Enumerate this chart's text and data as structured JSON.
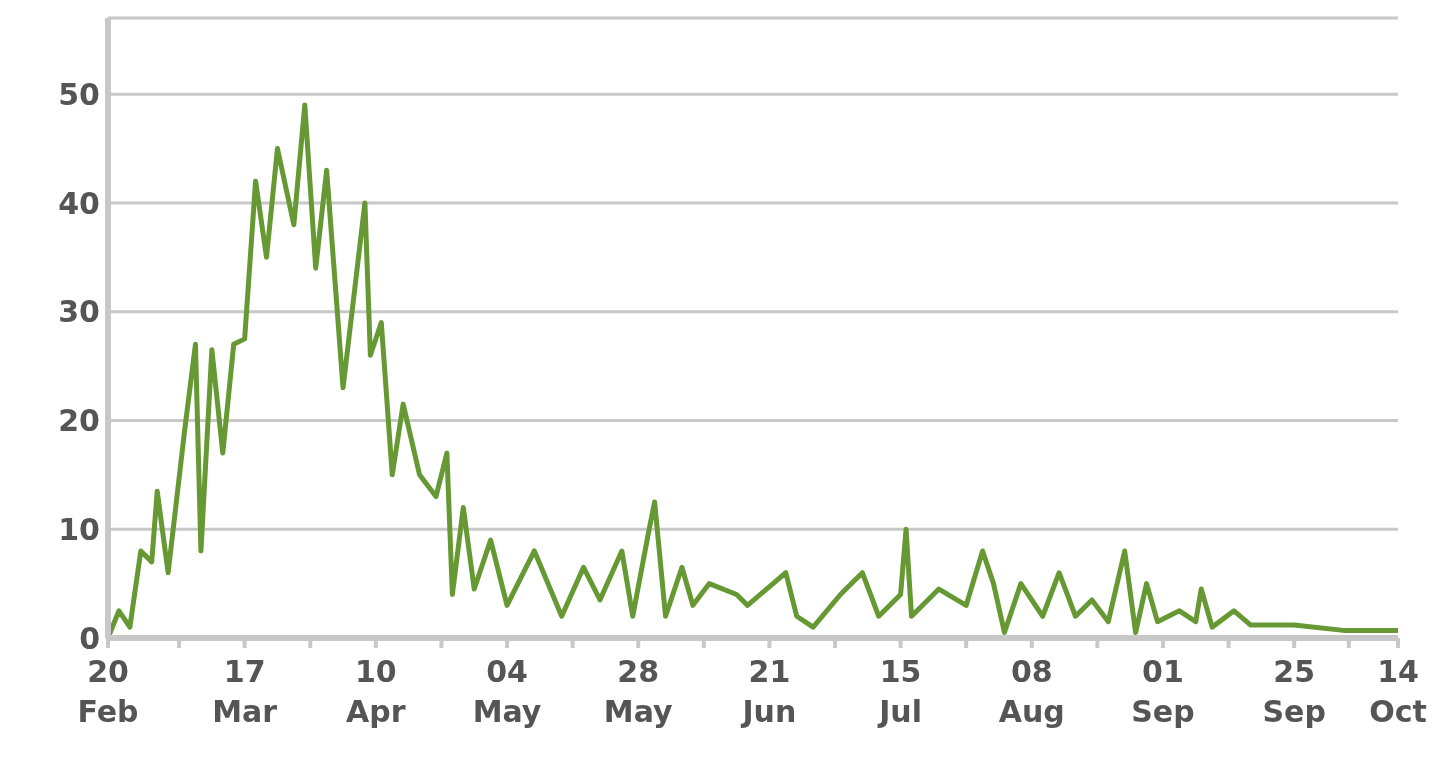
{
  "chart_data": {
    "type": "line",
    "x": [
      "--02-20",
      "--02-22",
      "--02-24",
      "--02-26",
      "--02-28",
      "--03-01",
      "--03-03",
      "--03-06",
      "--03-08",
      "--03-09",
      "--03-11",
      "--03-13",
      "--03-15",
      "--03-17",
      "--03-19",
      "--03-21",
      "--03-23",
      "--03-26",
      "--03-28",
      "--03-30",
      "--04-01",
      "--04-04",
      "--04-08",
      "--04-09",
      "--04-11",
      "--04-13",
      "--04-15",
      "--04-18",
      "--04-21",
      "--04-23",
      "--04-24",
      "--04-26",
      "--04-28",
      "--05-01",
      "--05-04",
      "--05-09",
      "--05-14",
      "--05-18",
      "--05-21",
      "--05-25",
      "--05-27",
      "--05-30",
      "--05-31",
      "--06-02",
      "--06-05",
      "--06-07",
      "--06-10",
      "--06-15",
      "--06-17",
      "--06-24",
      "--06-26",
      "--06-29",
      "--07-04",
      "--07-08",
      "--07-11",
      "--07-15",
      "--07-16",
      "--07-17",
      "--07-22",
      "--07-27",
      "--07-30",
      "--08-01",
      "--08-03",
      "--08-06",
      "--08-10",
      "--08-13",
      "--08-16",
      "--08-19",
      "--08-22",
      "--08-25",
      "--08-27",
      "--08-29",
      "--08-31",
      "--09-04",
      "--09-07",
      "--09-08",
      "--09-10",
      "--09-14",
      "--09-17",
      "--09-25",
      "--10-04",
      "--10-14"
    ],
    "series": [
      {
        "color": "#669933",
        "values": [
          0,
          2.5,
          1,
          8,
          7,
          13.5,
          6,
          19,
          27,
          8,
          26.5,
          17,
          27,
          27.5,
          42,
          35,
          45,
          38,
          49,
          34,
          43,
          23,
          40,
          26,
          29,
          15,
          21.5,
          15,
          13,
          17,
          4,
          12,
          4.5,
          9,
          3,
          8,
          2,
          6.5,
          3.5,
          8,
          2,
          10,
          12.5,
          2,
          6.5,
          3,
          5,
          4,
          3,
          6,
          2,
          1,
          4,
          6,
          2,
          4,
          10,
          2,
          4.5,
          3,
          8,
          5,
          0.5,
          5,
          2,
          6,
          2,
          3.5,
          1.5,
          8,
          0.5,
          5,
          1.5,
          2.5,
          1.5,
          4.5,
          1,
          2.5,
          1.2,
          1.2,
          0.7,
          0.7
        ]
      }
    ],
    "xlim": [
      "--02-20",
      "--10-14"
    ],
    "xticks": [
      {
        "value": "--02-20",
        "label": "20 Feb"
      },
      {
        "value": "--03-05",
        "label": null
      },
      {
        "value": "--03-17",
        "label": "17 Mar"
      },
      {
        "value": "--03-29",
        "label": null
      },
      {
        "value": "--04-10",
        "label": "10 Apr"
      },
      {
        "value": "--04-22",
        "label": null
      },
      {
        "value": "--05-04",
        "label": "04 May"
      },
      {
        "value": "--05-16",
        "label": null
      },
      {
        "value": "--05-28",
        "label": "28 May"
      },
      {
        "value": "--06-09",
        "label": null
      },
      {
        "value": "--06-21",
        "label": "21 Jun"
      },
      {
        "value": "--07-03",
        "label": null
      },
      {
        "value": "--07-15",
        "label": "15 Jul"
      },
      {
        "value": "--07-27",
        "label": null
      },
      {
        "value": "--08-08",
        "label": "08 Aug"
      },
      {
        "value": "--08-20",
        "label": null
      },
      {
        "value": "--09-01",
        "label": "01 Sep"
      },
      {
        "value": "--09-13",
        "label": null
      },
      {
        "value": "--09-25",
        "label": "25 Sep"
      },
      {
        "value": "--10-05",
        "label": null
      },
      {
        "value": "--10-14",
        "label": "14 Oct"
      }
    ],
    "ylim": [
      0,
      57
    ],
    "yticks": [
      0,
      10,
      20,
      30,
      40,
      50
    ],
    "grid": "y",
    "marker": "none",
    "line_style": "solid",
    "legend": false
  }
}
